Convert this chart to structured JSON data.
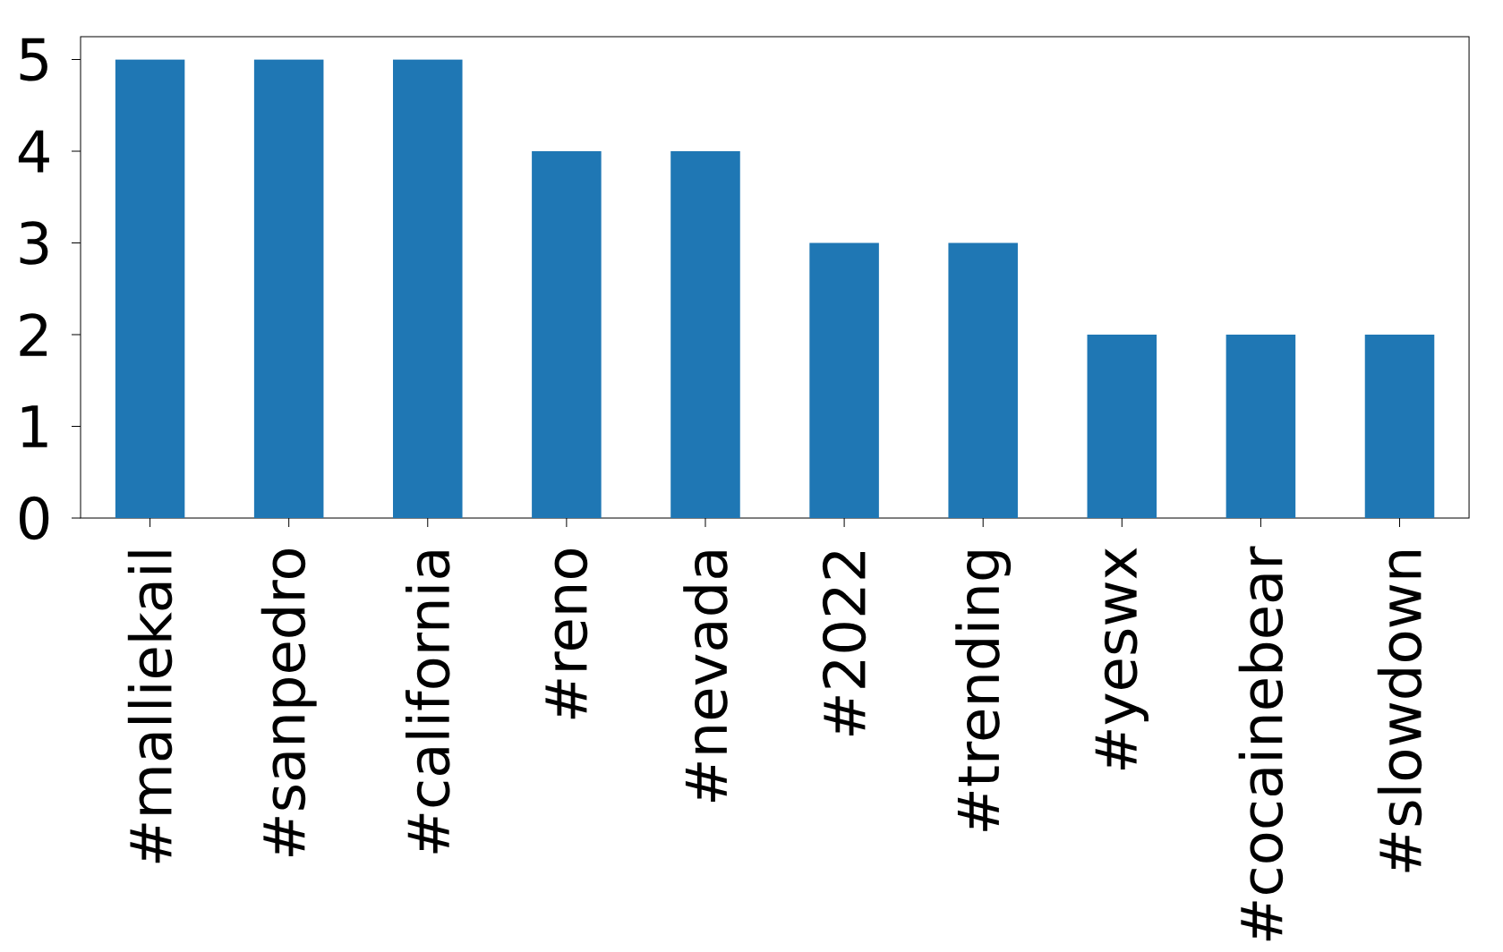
{
  "chart_data": {
    "type": "bar",
    "categories": [
      "#malliekail",
      "#sanpedro",
      "#california",
      "#reno",
      "#nevada",
      "#2022",
      "#trending",
      "#yeswx",
      "#cocainebear",
      "#slowdown"
    ],
    "values": [
      5,
      5,
      5,
      4,
      4,
      3,
      3,
      2,
      2,
      2
    ],
    "color": "#1f77b4",
    "ylim": [
      0,
      5.25
    ],
    "yticks": [
      0,
      1,
      2,
      3,
      4,
      5
    ]
  }
}
